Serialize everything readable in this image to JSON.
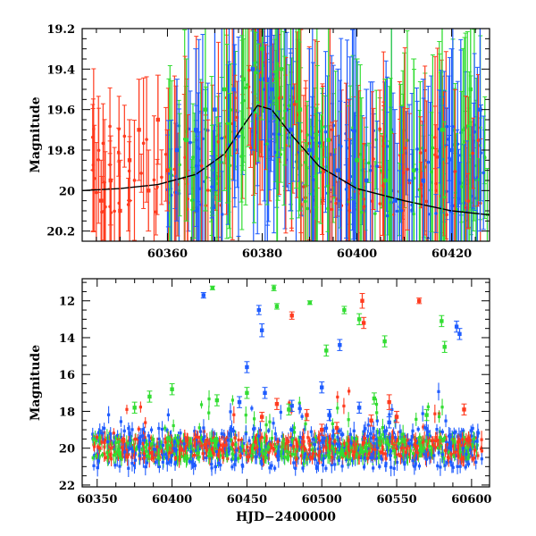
{
  "chart_data": [
    {
      "type": "scatter",
      "title": "",
      "xlabel": "",
      "ylabel": "Magnitude",
      "xlim": [
        60342,
        60428
      ],
      "ylim": [
        20.25,
        19.2
      ],
      "y_inverted": true,
      "xticks": [
        60360,
        60380,
        60400,
        60420
      ],
      "yticks": [
        19.2,
        19.4,
        19.6,
        19.8,
        20,
        20.2
      ],
      "xtick_labels": [
        "60360",
        "60380",
        "60400",
        "60420"
      ],
      "ytick_labels": [
        "19.2",
        "19.4",
        "19.6",
        "19.8",
        "20",
        "20.2"
      ],
      "grid": false,
      "legend": "none",
      "series_colors": [
        "#ff3b1f",
        "#1f5cff",
        "#33dd33"
      ],
      "model_line": {
        "color": "#000000",
        "x": [
          60342,
          60350,
          60358,
          60366,
          60372,
          60376,
          60379,
          60382,
          60386,
          60392,
          60400,
          60410,
          60420,
          60428
        ],
        "y": [
          20.0,
          19.99,
          19.97,
          19.92,
          19.82,
          19.68,
          19.58,
          19.6,
          19.72,
          19.88,
          19.99,
          20.05,
          20.1,
          20.12
        ]
      },
      "series": [
        {
          "x": [
            60346,
            60348,
            60350,
            60352,
            60354,
            60356,
            60358,
            60360
          ],
          "y": [
            20.05,
            19.95,
            20.1,
            19.85,
            19.7,
            20.0,
            19.65,
            19.9
          ],
          "err": [
            0.2,
            0.22,
            0.25,
            0.2,
            0.25,
            0.2,
            0.22,
            0.2
          ]
        },
        {
          "x": [
            60362,
            60366,
            60370,
            60374,
            60378,
            60380,
            60382,
            60386,
            60390,
            60396,
            60402,
            60408,
            60414,
            60420,
            60426
          ],
          "y": [
            19.8,
            19.7,
            19.6,
            19.5,
            19.4,
            19.45,
            19.5,
            19.7,
            19.8,
            19.9,
            19.95,
            20.05,
            19.95,
            19.8,
            19.6
          ],
          "err": [
            0.35,
            0.4,
            0.4,
            0.45,
            0.4,
            0.3,
            0.35,
            0.4,
            0.5,
            0.5,
            0.45,
            0.45,
            0.5,
            0.5,
            0.6
          ]
        },
        {
          "x": [
            60364,
            60368,
            60372,
            60376,
            60380,
            60384,
            60388,
            60394,
            60400,
            60406,
            60412,
            60418,
            60424
          ],
          "y": [
            19.75,
            19.6,
            19.5,
            19.45,
            19.3,
            19.4,
            19.6,
            19.75,
            19.85,
            19.95,
            19.9,
            19.7,
            19.5
          ],
          "err": [
            0.4,
            0.5,
            0.5,
            0.45,
            0.35,
            0.4,
            0.5,
            0.55,
            0.5,
            0.5,
            0.55,
            0.6,
            0.6
          ]
        }
      ]
    },
    {
      "type": "scatter",
      "title": "",
      "xlabel": "HJD−2400000",
      "ylabel": "Magnitude",
      "xlim": [
        60340,
        60612
      ],
      "ylim": [
        22.1,
        10.8
      ],
      "y_inverted": true,
      "xticks": [
        60350,
        60400,
        60450,
        60500,
        60550,
        60600
      ],
      "yticks": [
        12,
        14,
        16,
        18,
        20,
        22
      ],
      "xtick_labels": [
        "60350",
        "60400",
        "60450",
        "60500",
        "60550",
        "60600"
      ],
      "ytick_labels": [
        "12",
        "14",
        "16",
        "18",
        "20",
        "22"
      ],
      "grid": false,
      "legend": "none",
      "series_colors": [
        "#ff3b1f",
        "#1f5cff",
        "#33dd33"
      ],
      "series": [
        {
          "x": [
            60460,
            60470,
            60480,
            60490,
            60500,
            60510,
            60527,
            60528,
            60533,
            60545,
            60550,
            60565,
            60595
          ],
          "y": [
            18.3,
            17.6,
            12.8,
            18.2,
            19.0,
            18.9,
            12.0,
            13.2,
            18.5,
            17.5,
            18.3,
            12.0,
            17.9
          ],
          "err": [
            0.25,
            0.3,
            0.2,
            0.3,
            0.3,
            0.3,
            0.4,
            0.3,
            0.3,
            0.4,
            0.3,
            0.15,
            0.3
          ]
        },
        {
          "x": [
            60421,
            60445,
            60450,
            60458,
            60460,
            60462,
            60480,
            60500,
            60505,
            60512,
            60525,
            60545,
            60590,
            60592
          ],
          "y": [
            11.7,
            17.5,
            15.6,
            12.5,
            13.6,
            17.0,
            17.7,
            16.7,
            18.2,
            14.4,
            17.8,
            18.6,
            13.4,
            13.8
          ],
          "err": [
            0.15,
            0.3,
            0.3,
            0.25,
            0.35,
            0.3,
            0.3,
            0.3,
            0.3,
            0.3,
            0.3,
            0.3,
            0.3,
            0.3
          ]
        },
        {
          "x": [
            60375,
            60385,
            60400,
            60427,
            60430,
            60450,
            60468,
            60470,
            60478,
            60492,
            60503,
            60515,
            60525,
            60535,
            60542,
            60570,
            60580,
            60582
          ],
          "y": [
            17.8,
            17.2,
            16.8,
            11.3,
            17.4,
            17.0,
            11.3,
            12.3,
            17.9,
            12.1,
            14.7,
            12.5,
            13.0,
            17.3,
            14.2,
            18.2,
            13.1,
            14.5
          ],
          "err": [
            0.3,
            0.3,
            0.3,
            0.1,
            0.3,
            0.3,
            0.15,
            0.15,
            0.3,
            0.1,
            0.3,
            0.2,
            0.3,
            0.3,
            0.3,
            0.3,
            0.3,
            0.3
          ]
        }
      ]
    }
  ]
}
